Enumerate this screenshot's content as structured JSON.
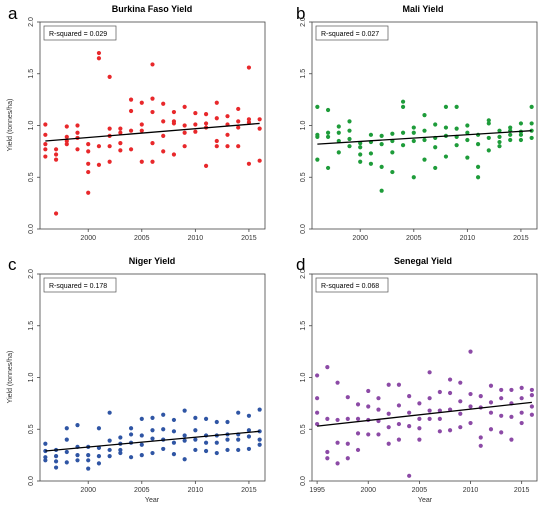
{
  "chart_data": [
    {
      "panel": "a",
      "type": "scatter",
      "title": "Burkina Faso Yield",
      "xlabel": "",
      "ylabel": "Yield (tonnes/ha)",
      "xlim": [
        1995.5,
        2016.5
      ],
      "ylim": [
        0.0,
        2.0
      ],
      "xticks": [
        2000,
        2005,
        2010,
        2015
      ],
      "yticks": [
        0.0,
        0.5,
        1.0,
        1.5,
        2.0
      ],
      "annotation": "R-squared = 0.029",
      "color": "#e8282b",
      "trend": {
        "x": [
          1996,
          2016
        ],
        "y": [
          0.85,
          1.02
        ]
      },
      "points": {
        "x": [
          1996,
          1996,
          1996,
          1996,
          1996,
          1997,
          1997,
          1997,
          1997,
          1998,
          1998,
          1998,
          1998,
          1999,
          1999,
          1999,
          1999,
          2000,
          2000,
          2000,
          2000,
          2000,
          2001,
          2001,
          2001,
          2001,
          2002,
          2002,
          2002,
          2002,
          2002,
          2003,
          2003,
          2003,
          2003,
          2004,
          2004,
          2004,
          2004,
          2005,
          2005,
          2005,
          2005,
          2006,
          2006,
          2006,
          2006,
          2006,
          2007,
          2007,
          2007,
          2007,
          2008,
          2008,
          2008,
          2008,
          2009,
          2009,
          2009,
          2009,
          2010,
          2010,
          2010,
          2011,
          2011,
          2011,
          2011,
          2012,
          2012,
          2012,
          2012,
          2013,
          2013,
          2013,
          2013,
          2014,
          2014,
          2014,
          2014,
          2015,
          2015,
          2015,
          2015,
          2016,
          2016,
          2016
        ],
        "y": [
          1.01,
          0.91,
          0.82,
          0.77,
          0.7,
          0.77,
          0.72,
          0.67,
          0.15,
          0.99,
          0.89,
          0.85,
          0.82,
          1.0,
          0.93,
          0.88,
          0.77,
          0.82,
          0.75,
          0.63,
          0.55,
          0.35,
          1.7,
          1.65,
          0.8,
          0.62,
          1.47,
          0.97,
          0.9,
          0.8,
          0.65,
          0.97,
          0.93,
          0.83,
          0.76,
          1.25,
          1.14,
          0.95,
          0.77,
          1.22,
          1.01,
          0.95,
          0.65,
          1.59,
          1.26,
          1.13,
          0.83,
          0.65,
          1.21,
          1.04,
          0.9,
          0.75,
          1.13,
          1.04,
          1.02,
          0.72,
          1.18,
          1.0,
          0.93,
          0.8,
          1.12,
          1.01,
          0.94,
          1.11,
          1.02,
          0.98,
          0.61,
          1.22,
          1.07,
          0.85,
          0.8,
          1.09,
          1.01,
          0.91,
          0.8,
          1.16,
          1.04,
          0.98,
          0.8,
          1.56,
          1.06,
          1.03,
          0.63,
          1.06,
          0.97,
          0.66
        ]
      }
    },
    {
      "panel": "b",
      "type": "scatter",
      "title": "Mali Yield",
      "xlabel": "",
      "ylabel": "",
      "xlim": [
        1995.5,
        2016.5
      ],
      "ylim": [
        0.0,
        2.0
      ],
      "xticks": [
        2000,
        2005,
        2010,
        2015
      ],
      "yticks": [
        0.0,
        0.5,
        1.0,
        1.5,
        2.0
      ],
      "annotation": "R-squared = 0.027",
      "color": "#1e9c3a",
      "trend": {
        "x": [
          1996,
          2016
        ],
        "y": [
          0.82,
          0.95
        ]
      },
      "points": {
        "x": [
          1996,
          1996,
          1996,
          1996,
          1997,
          1997,
          1997,
          1997,
          1998,
          1998,
          1998,
          1998,
          1999,
          1999,
          1999,
          1999,
          2000,
          2000,
          2000,
          2000,
          2001,
          2001,
          2001,
          2001,
          2002,
          2002,
          2002,
          2002,
          2003,
          2003,
          2003,
          2003,
          2004,
          2004,
          2004,
          2004,
          2005,
          2005,
          2005,
          2005,
          2006,
          2006,
          2006,
          2006,
          2007,
          2007,
          2007,
          2007,
          2008,
          2008,
          2008,
          2008,
          2009,
          2009,
          2009,
          2009,
          2010,
          2010,
          2010,
          2010,
          2011,
          2011,
          2011,
          2011,
          2012,
          2012,
          2012,
          2012,
          2013,
          2013,
          2013,
          2013,
          2014,
          2014,
          2014,
          2014,
          2015,
          2015,
          2015,
          2015,
          2016,
          2016,
          2016,
          2016
        ],
        "y": [
          1.18,
          0.91,
          0.89,
          0.67,
          1.15,
          0.93,
          0.89,
          0.59,
          0.99,
          0.93,
          0.85,
          0.74,
          1.04,
          0.95,
          0.87,
          0.8,
          0.83,
          0.79,
          0.72,
          0.65,
          0.91,
          0.84,
          0.73,
          0.63,
          0.9,
          0.82,
          0.6,
          0.37,
          0.92,
          0.85,
          0.74,
          0.55,
          1.23,
          1.18,
          0.93,
          0.81,
          0.98,
          0.93,
          0.85,
          0.5,
          1.1,
          0.95,
          0.86,
          0.67,
          1.01,
          0.88,
          0.79,
          0.59,
          1.18,
          0.98,
          0.9,
          0.7,
          1.18,
          0.97,
          0.89,
          0.81,
          1.0,
          0.93,
          0.86,
          0.69,
          0.91,
          0.82,
          0.6,
          0.5,
          1.05,
          1.02,
          0.88,
          0.76,
          0.95,
          0.89,
          0.84,
          0.8,
          0.98,
          0.95,
          0.91,
          0.86,
          1.02,
          0.94,
          0.91,
          0.86,
          1.18,
          1.02,
          0.95,
          0.88
        ]
      }
    },
    {
      "panel": "c",
      "type": "scatter",
      "title": "Niger Yield",
      "xlabel": "Year",
      "ylabel": "Yield (tonnes/ha)",
      "xlim": [
        1995.5,
        2016.5
      ],
      "ylim": [
        0.0,
        2.0
      ],
      "xticks": [
        2000,
        2005,
        2010,
        2015
      ],
      "yticks": [
        0.0,
        0.5,
        1.0,
        1.5,
        2.0
      ],
      "annotation": "R-squared = 0.178",
      "color": "#2f55a4",
      "trend": {
        "x": [
          1996,
          2016
        ],
        "y": [
          0.29,
          0.48
        ]
      },
      "points": {
        "x": [
          1996,
          1996,
          1996,
          1996,
          1997,
          1997,
          1997,
          1997,
          1998,
          1998,
          1998,
          1998,
          1999,
          1999,
          1999,
          1999,
          2000,
          2000,
          2000,
          2000,
          2001,
          2001,
          2001,
          2001,
          2002,
          2002,
          2002,
          2002,
          2003,
          2003,
          2003,
          2003,
          2004,
          2004,
          2004,
          2004,
          2005,
          2005,
          2005,
          2005,
          2006,
          2006,
          2006,
          2006,
          2007,
          2007,
          2007,
          2007,
          2008,
          2008,
          2008,
          2008,
          2009,
          2009,
          2009,
          2009,
          2010,
          2010,
          2010,
          2010,
          2011,
          2011,
          2011,
          2011,
          2012,
          2012,
          2012,
          2012,
          2013,
          2013,
          2013,
          2013,
          2014,
          2014,
          2014,
          2014,
          2015,
          2015,
          2015,
          2015,
          2016,
          2016,
          2016,
          2016
        ],
        "y": [
          0.36,
          0.29,
          0.23,
          0.2,
          0.3,
          0.24,
          0.19,
          0.13,
          0.51,
          0.4,
          0.28,
          0.18,
          0.54,
          0.33,
          0.25,
          0.2,
          0.33,
          0.25,
          0.2,
          0.12,
          0.51,
          0.32,
          0.24,
          0.17,
          0.66,
          0.39,
          0.3,
          0.24,
          0.42,
          0.36,
          0.3,
          0.27,
          0.51,
          0.45,
          0.37,
          0.23,
          0.6,
          0.44,
          0.35,
          0.25,
          0.61,
          0.49,
          0.41,
          0.27,
          0.64,
          0.5,
          0.4,
          0.31,
          0.59,
          0.48,
          0.37,
          0.26,
          0.68,
          0.44,
          0.39,
          0.21,
          0.61,
          0.49,
          0.4,
          0.3,
          0.6,
          0.44,
          0.37,
          0.29,
          0.57,
          0.44,
          0.37,
          0.27,
          0.57,
          0.45,
          0.4,
          0.3,
          0.66,
          0.45,
          0.4,
          0.3,
          0.63,
          0.49,
          0.43,
          0.31,
          0.69,
          0.48,
          0.4,
          0.35
        ]
      }
    },
    {
      "panel": "d",
      "type": "scatter",
      "title": "Senegal Yield",
      "xlabel": "Year",
      "ylabel": "",
      "xlim": [
        1994.5,
        2016.5
      ],
      "ylim": [
        0.0,
        2.0
      ],
      "xticks": [
        1995,
        2000,
        2005,
        2010,
        2015
      ],
      "yticks": [
        0.0,
        0.5,
        1.0,
        1.5,
        2.0
      ],
      "annotation": "R-squared = 0.068",
      "color": "#8c4aa6",
      "trend": {
        "x": [
          1995,
          2016
        ],
        "y": [
          0.53,
          0.76
        ]
      },
      "points": {
        "x": [
          1995,
          1995,
          1995,
          1995,
          1996,
          1996,
          1996,
          1996,
          1997,
          1997,
          1997,
          1997,
          1998,
          1998,
          1998,
          1998,
          1999,
          1999,
          1999,
          1999,
          2000,
          2000,
          2000,
          2000,
          2001,
          2001,
          2001,
          2001,
          2002,
          2002,
          2002,
          2002,
          2003,
          2003,
          2003,
          2003,
          2004,
          2004,
          2004,
          2004,
          2005,
          2005,
          2005,
          2005,
          2006,
          2006,
          2006,
          2006,
          2007,
          2007,
          2007,
          2007,
          2008,
          2008,
          2008,
          2008,
          2009,
          2009,
          2009,
          2009,
          2010,
          2010,
          2010,
          2010,
          2011,
          2011,
          2011,
          2011,
          2012,
          2012,
          2012,
          2012,
          2013,
          2013,
          2013,
          2013,
          2014,
          2014,
          2014,
          2014,
          2015,
          2015,
          2015,
          2015,
          2016,
          2016,
          2016,
          2016
        ],
        "y": [
          1.02,
          0.8,
          0.66,
          0.55,
          1.1,
          0.6,
          0.28,
          0.22,
          0.95,
          0.59,
          0.37,
          0.17,
          0.81,
          0.6,
          0.36,
          0.22,
          0.74,
          0.6,
          0.46,
          0.3,
          0.87,
          0.72,
          0.59,
          0.45,
          0.8,
          0.69,
          0.58,
          0.45,
          0.93,
          0.65,
          0.52,
          0.36,
          0.93,
          0.73,
          0.55,
          0.4,
          0.82,
          0.66,
          0.53,
          0.05,
          0.75,
          0.6,
          0.51,
          0.4,
          1.05,
          0.8,
          0.68,
          0.6,
          0.86,
          0.68,
          0.6,
          0.48,
          0.98,
          0.85,
          0.69,
          0.49,
          0.95,
          0.77,
          0.65,
          0.52,
          1.25,
          0.84,
          0.72,
          0.56,
          0.82,
          0.71,
          0.42,
          0.34,
          0.92,
          0.76,
          0.66,
          0.5,
          0.88,
          0.8,
          0.63,
          0.47,
          0.88,
          0.75,
          0.62,
          0.4,
          0.9,
          0.8,
          0.66,
          0.56,
          0.88,
          0.83,
          0.72,
          0.64
        ]
      }
    }
  ]
}
